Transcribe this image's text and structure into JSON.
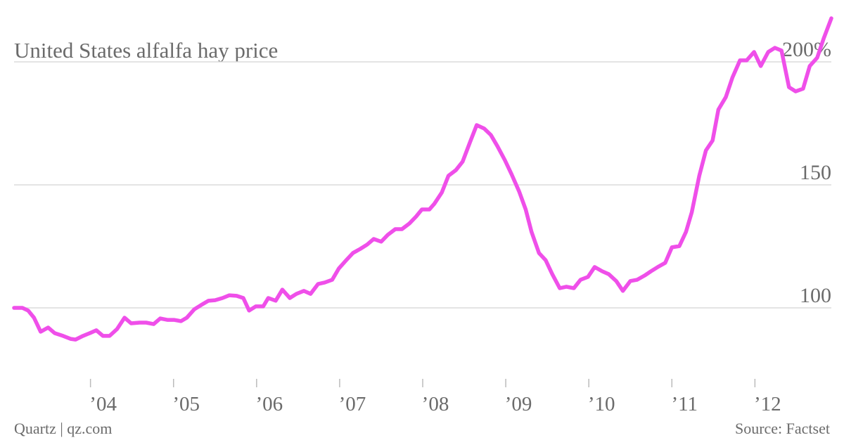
{
  "chart_data": {
    "type": "line",
    "title": "United States alfalfa hay price",
    "footer_left": "Quartz | qz.com",
    "footer_right": "Source: Factset",
    "x": [
      2003.08,
      2003.18,
      2003.25,
      2003.32,
      2003.4,
      2003.49,
      2003.57,
      2003.67,
      2003.76,
      2003.82,
      2003.91,
      2003.99,
      2004.07,
      2004.15,
      2004.23,
      2004.32,
      2004.41,
      2004.49,
      2004.59,
      2004.67,
      2004.76,
      2004.84,
      2004.93,
      2005.01,
      2005.09,
      2005.16,
      2005.25,
      2005.33,
      2005.42,
      2005.5,
      2005.59,
      2005.67,
      2005.76,
      2005.84,
      2005.91,
      2005.99,
      2006.08,
      2006.14,
      2006.23,
      2006.31,
      2006.4,
      2006.48,
      2006.57,
      2006.65,
      2006.74,
      2006.82,
      2006.91,
      2006.99,
      2007.08,
      2007.16,
      2007.25,
      2007.33,
      2007.41,
      2007.5,
      2007.58,
      2007.67,
      2007.75,
      2007.84,
      2007.92,
      2007.99,
      2008.08,
      2008.14,
      2008.23,
      2008.31,
      2008.4,
      2008.48,
      2008.57,
      2008.65,
      2008.74,
      2008.82,
      2008.9,
      2008.99,
      2009.07,
      2009.16,
      2009.24,
      2009.31,
      2009.4,
      2009.48,
      2009.56,
      2009.65,
      2009.73,
      2009.82,
      2009.9,
      2009.99,
      2010.07,
      2010.16,
      2010.24,
      2010.33,
      2010.41,
      2010.5,
      2010.58,
      2010.67,
      2010.75,
      2010.83,
      2010.92,
      2011.0,
      2011.09,
      2011.17,
      2011.24,
      2011.33,
      2011.41,
      2011.49,
      2011.56,
      2011.65,
      2011.73,
      2011.82,
      2011.9,
      2011.99,
      2012.07,
      2012.16,
      2012.24,
      2012.32,
      2012.41,
      2012.49,
      2012.58,
      2012.66,
      2012.75,
      2012.83,
      2012.92
    ],
    "series": [
      {
        "color": "#ef4fe9",
        "values": [
          100,
          100,
          98.9,
          96,
          90.3,
          92,
          89.7,
          88.6,
          87.4,
          87.1,
          88.6,
          89.7,
          90.9,
          88.6,
          88.6,
          91.4,
          96,
          93.7,
          94,
          94,
          93.4,
          95.7,
          95.1,
          95.1,
          94.6,
          96,
          99.4,
          101.1,
          102.9,
          103.1,
          104,
          105.1,
          104.9,
          104,
          98.9,
          100.6,
          100.6,
          104,
          102.9,
          107.4,
          104,
          105.7,
          106.9,
          105.7,
          109.7,
          110.3,
          111.4,
          116,
          119.4,
          122.3,
          124,
          125.7,
          128,
          126.9,
          129.7,
          132,
          132,
          134.3,
          137.1,
          140,
          140,
          142.3,
          146.9,
          153.7,
          156,
          159.4,
          167.4,
          174.3,
          172.9,
          170.3,
          165.7,
          160,
          154.3,
          147.4,
          140,
          130.9,
          122.3,
          119.4,
          113.7,
          108,
          108.6,
          108,
          111.4,
          112.6,
          116.6,
          114.9,
          113.7,
          110.9,
          106.9,
          110.9,
          111.4,
          113.1,
          114.9,
          116.6,
          118.3,
          124.6,
          125.1,
          130.9,
          138.9,
          153.7,
          164,
          168,
          180.6,
          185.7,
          193.7,
          200.6,
          200.6,
          204,
          198.3,
          204,
          205.7,
          204.6,
          189.7,
          188,
          189.1,
          198.3,
          201.7,
          209.7,
          217.7
        ]
      }
    ],
    "xlim": [
      2003.08,
      2012.92
    ],
    "xticks": [
      {
        "value": 2004,
        "label": "’04"
      },
      {
        "value": 2005,
        "label": "’05"
      },
      {
        "value": 2006,
        "label": "’06"
      },
      {
        "value": 2007,
        "label": "’07"
      },
      {
        "value": 2008,
        "label": "’08"
      },
      {
        "value": 2009,
        "label": "’09"
      },
      {
        "value": 2010,
        "label": "’10"
      },
      {
        "value": 2011,
        "label": "’11"
      },
      {
        "value": 2012,
        "label": "’12"
      }
    ],
    "ylim": [
      70,
      220
    ],
    "yticks": [
      100,
      150,
      {
        "value": 200,
        "label": "200%"
      }
    ],
    "grid": true
  }
}
